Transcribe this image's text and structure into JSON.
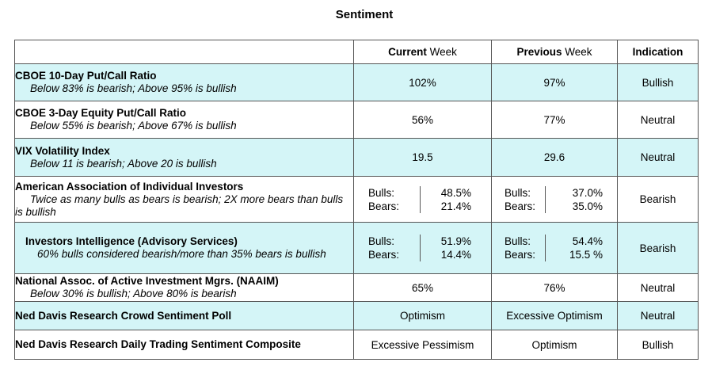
{
  "title": "Sentiment",
  "headers": {
    "current_bold": "Current",
    "current_rest": " Week",
    "previous_bold": "Previous",
    "previous_rest": " Week",
    "indication": "Indication"
  },
  "rows": [
    {
      "label": "CBOE 10-Day Put/Call Ratio",
      "sub": "Below 83% is bearish; Above 95% is bullish",
      "current": "102%",
      "previous": "97%",
      "indication": "Bullish"
    },
    {
      "label": "CBOE 3-Day Equity Put/Call Ratio",
      "sub": "Below 55% is bearish; Above 67% is bullish",
      "current": "56%",
      "previous": "77%",
      "indication": "Neutral"
    },
    {
      "label": "VIX Volatility Index",
      "sub": "Below 11 is bearish; Above 20 is bullish",
      "current": "19.5",
      "previous": "29.6",
      "indication": "Neutral"
    },
    {
      "label": "American Association of Individual Investors",
      "sub": "Twice as many bulls as bears is bearish; 2X more bears than bulls is bullish",
      "bulls_label": "Bulls:",
      "bears_label": "Bears:",
      "current_bulls": "48.5%",
      "current_bears": "21.4%",
      "previous_bulls": "37.0%",
      "previous_bears": "35.0%",
      "indication": "Bearish"
    },
    {
      "label": "Investors Intelligence (Advisory Services)",
      "sub": "60% bulls considered bearish/more than 35% bears is bullish",
      "bulls_label": "Bulls:",
      "bears_label": "Bears:",
      "current_bulls": "51.9%",
      "current_bears": "14.4%",
      "previous_bulls": "54.4%",
      "previous_bears": "15.5 %",
      "indication": "Bearish"
    },
    {
      "label": "National Assoc. of Active Investment Mgrs. (NAAIM)",
      "sub": "Below 30% is bullish; Above 80% is bearish",
      "current": "65%",
      "previous": "76%",
      "indication": "Neutral"
    },
    {
      "label": "Ned Davis Research Crowd Sentiment Poll",
      "current": "Optimism",
      "previous": "Excessive Optimism",
      "indication": "Neutral"
    },
    {
      "label": "Ned Davis Research Daily Trading Sentiment Composite",
      "current": "Excessive Pessimism",
      "previous": "Optimism",
      "indication": "Bullish"
    }
  ]
}
